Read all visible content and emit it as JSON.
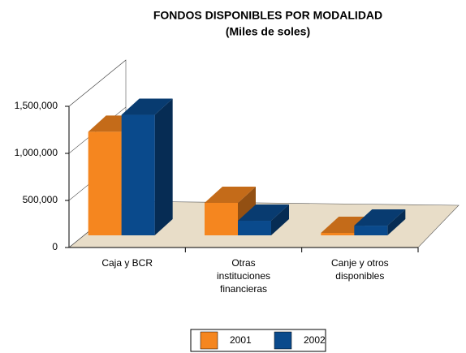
{
  "chart_data": {
    "type": "bar3d",
    "title": "FONDOS DISPONIBLES POR MODALIDAD",
    "subtitle": "(Miles de soles)",
    "categories": [
      "Caja y BCR",
      "Otras\ninstituciones\nfinancieras",
      "Canje y otros\ndisponibles"
    ],
    "series": [
      {
        "name": "2001",
        "color": "#f5861f",
        "values": [
          1100000,
          345000,
          26000
        ]
      },
      {
        "name": "2002",
        "color": "#0a4a8c",
        "values": [
          1280000,
          155000,
          103000
        ]
      }
    ],
    "ylim": [
      0,
      1500000
    ],
    "yticks": [
      0,
      {
        "value": 500000,
        "label": "500,000"
      },
      {
        "value": 1000000,
        "label": "1,000,000"
      },
      {
        "value": 1500000,
        "label": "1,500,000"
      }
    ],
    "legend": "bottom"
  }
}
